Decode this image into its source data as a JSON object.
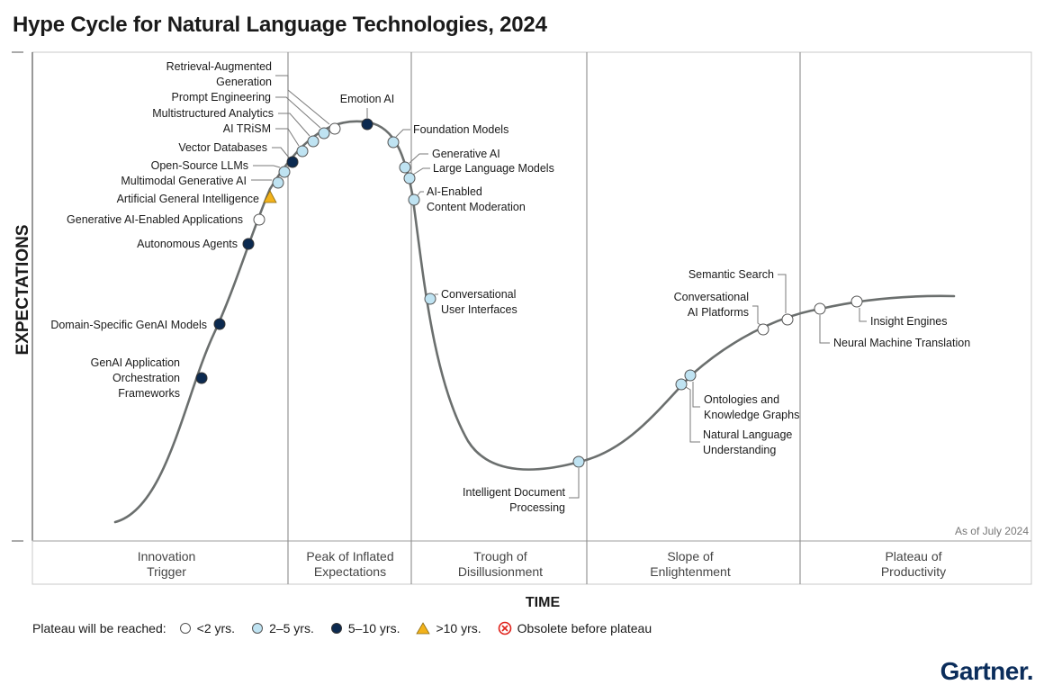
{
  "title": "Hype Cycle for Natural Language Technologies, 2024",
  "y_axis_label": "EXPECTATIONS",
  "x_axis_label": "TIME",
  "as_of": "As of July 2024",
  "brand": "Gartner.",
  "phases": [
    {
      "label": "Innovation\nTrigger"
    },
    {
      "label": "Peak of Inflated\nExpectations"
    },
    {
      "label": "Trough of\nDisillusionment"
    },
    {
      "label": "Slope of\nEnlightenment"
    },
    {
      "label": "Plateau of\nProductivity"
    }
  ],
  "legend": {
    "lead": "Plateau will be reached:",
    "items": [
      {
        "key": "lt2",
        "label": "<2 yrs."
      },
      {
        "key": "2to5",
        "label": "2–5 yrs."
      },
      {
        "key": "5to10",
        "label": "5–10 yrs."
      },
      {
        "key": "gt10",
        "label": ">10 yrs."
      },
      {
        "key": "obsolete",
        "label": "Obsolete before plateau"
      }
    ]
  },
  "colors": {
    "lt2": "#ffffff",
    "2to5": "#bfe3f2",
    "5to10": "#0c2a50",
    "gt10": "#f2b21b",
    "obsolete": "#e0221b",
    "curve": "#6b6f6e",
    "grid": "#8c8c8c"
  },
  "chart_data": {
    "type": "hype-cycle",
    "phases": [
      "Innovation Trigger",
      "Peak of Inflated Expectations",
      "Trough of Disillusionment",
      "Slope of Enlightenment",
      "Plateau of Productivity"
    ],
    "technologies": [
      {
        "name": "GenAI Application Orchestration Frameworks",
        "label": "GenAI Application\nOrchestration\nFrameworks",
        "phase": "Innovation Trigger",
        "plateau": "5to10"
      },
      {
        "name": "Domain-Specific GenAI Models",
        "label": "Domain-Specific GenAI Models",
        "phase": "Innovation Trigger",
        "plateau": "5to10"
      },
      {
        "name": "Autonomous Agents",
        "label": "Autonomous Agents",
        "phase": "Innovation Trigger",
        "plateau": "5to10"
      },
      {
        "name": "Generative AI-Enabled Applications",
        "label": "Generative AI-Enabled Applications",
        "phase": "Innovation Trigger",
        "plateau": "lt2"
      },
      {
        "name": "Artificial General Intelligence",
        "label": "Artificial General Intelligence",
        "phase": "Innovation Trigger",
        "plateau": "gt10"
      },
      {
        "name": "Multimodal Generative AI",
        "label": "Multimodal Generative AI",
        "phase": "Peak of Inflated Expectations",
        "plateau": "2to5"
      },
      {
        "name": "Open-Source LLMs",
        "label": "Open-Source LLMs",
        "phase": "Peak of Inflated Expectations",
        "plateau": "2to5"
      },
      {
        "name": "Vector Databases",
        "label": "Vector Databases",
        "phase": "Peak of Inflated Expectations",
        "plateau": "5to10"
      },
      {
        "name": "AI TRiSM",
        "label": "AI TRiSM",
        "phase": "Peak of Inflated Expectations",
        "plateau": "2to5"
      },
      {
        "name": "Multistructured Analytics",
        "label": "Multistructured Analytics",
        "phase": "Peak of Inflated Expectations",
        "plateau": "2to5"
      },
      {
        "name": "Prompt Engineering",
        "label": "Prompt Engineering",
        "phase": "Peak of Inflated Expectations",
        "plateau": "2to5"
      },
      {
        "name": "Retrieval-Augmented Generation",
        "label": "Retrieval-Augmented\nGeneration",
        "phase": "Peak of Inflated Expectations",
        "plateau": "lt2"
      },
      {
        "name": "Emotion AI",
        "label": "Emotion AI",
        "phase": "Peak of Inflated Expectations",
        "plateau": "5to10"
      },
      {
        "name": "Foundation Models",
        "label": "Foundation Models",
        "phase": "Peak of Inflated Expectations",
        "plateau": "2to5"
      },
      {
        "name": "Generative AI",
        "label": "Generative AI",
        "phase": "Peak of Inflated Expectations",
        "plateau": "2to5"
      },
      {
        "name": "Large Language Models",
        "label": "Large Language Models",
        "phase": "Peak of Inflated Expectations",
        "plateau": "2to5"
      },
      {
        "name": "AI-Enabled Content Moderation",
        "label": "AI-Enabled\nContent Moderation",
        "phase": "Trough of Disillusionment",
        "plateau": "2to5"
      },
      {
        "name": "Conversational User Interfaces",
        "label": "Conversational\nUser Interfaces",
        "phase": "Trough of Disillusionment",
        "plateau": "2to5"
      },
      {
        "name": "Intelligent Document Processing",
        "label": "Intelligent Document\nProcessing",
        "phase": "Trough of Disillusionment",
        "plateau": "2to5"
      },
      {
        "name": "Natural Language Understanding",
        "label": "Natural Language\nUnderstanding",
        "phase": "Slope of Enlightenment",
        "plateau": "2to5"
      },
      {
        "name": "Ontologies and Knowledge Graphs",
        "label": "Ontologies and\nKnowledge Graphs",
        "phase": "Slope of Enlightenment",
        "plateau": "2to5"
      },
      {
        "name": "Conversational AI Platforms",
        "label": "Conversational\nAI Platforms",
        "phase": "Slope of Enlightenment",
        "plateau": "lt2"
      },
      {
        "name": "Semantic Search",
        "label": "Semantic Search",
        "phase": "Slope of Enlightenment",
        "plateau": "lt2"
      },
      {
        "name": "Neural Machine Translation",
        "label": "Neural Machine Translation",
        "phase": "Plateau of Productivity",
        "plateau": "lt2"
      },
      {
        "name": "Insight Engines",
        "label": "Insight Engines",
        "phase": "Plateau of Productivity",
        "plateau": "lt2"
      }
    ]
  }
}
